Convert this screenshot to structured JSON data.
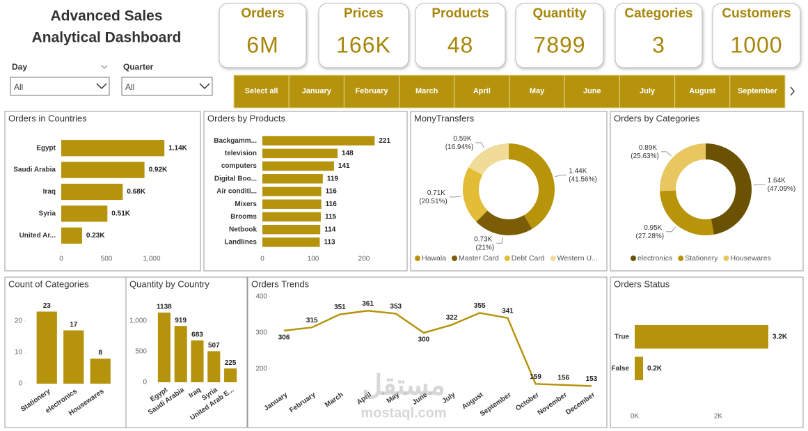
{
  "header": {
    "title": [
      "Advanced Sales",
      "Analytical Dashboard"
    ]
  },
  "kpis": [
    {
      "label": "Orders",
      "value": "6M"
    },
    {
      "label": "Prices",
      "value": "166K"
    },
    {
      "label": "Products",
      "value": "48"
    },
    {
      "label": "Quantity",
      "value": "7899"
    },
    {
      "label": "Categories",
      "value": "3"
    },
    {
      "label": "Customers",
      "value": "1000"
    }
  ],
  "slicers": [
    {
      "label": "Day",
      "value": "All"
    },
    {
      "label": "Quarter",
      "value": "All"
    }
  ],
  "month_buttons": [
    "Select all",
    "January",
    "February",
    "March",
    "April",
    "May",
    "June",
    "July",
    "August",
    "September"
  ],
  "watermark": [
    "مستقل",
    "mostaql.com"
  ],
  "chart_data": [
    {
      "type": "hbar",
      "title": "Orders in Countries",
      "categories": [
        "Egypt",
        "Saudi Arabia",
        "Iraq",
        "Syria",
        "United Ar..."
      ],
      "values": [
        1140,
        920,
        680,
        510,
        230
      ],
      "value_labels": [
        "1.14K",
        "0.92K",
        "0.68K",
        "0.51K",
        "0.23K"
      ],
      "color": "#b5930c",
      "xlim": [
        0,
        1300
      ],
      "xticks": [
        0,
        500,
        {
          "value": 1000,
          "label": "1,000"
        }
      ]
    },
    {
      "type": "hbar",
      "title": "Orders by Products",
      "categories": [
        "Backgamm...",
        "television",
        "computers",
        "Digital Boo...",
        "Air conditi...",
        "Mixers",
        "Brooms",
        "Netbook",
        "Landlines"
      ],
      "values": [
        221,
        148,
        141,
        119,
        116,
        116,
        115,
        114,
        113
      ],
      "color": "#b5930c",
      "xlim": [
        0,
        250
      ],
      "xticks": [
        0,
        100,
        200
      ]
    },
    {
      "type": "donut",
      "title": "MonyTransfers",
      "categories": [
        "Hawala",
        "Master Card",
        "Debt Card",
        "Western U..."
      ],
      "values": [
        1440,
        730,
        710,
        590
      ],
      "value_labels": [
        "1.44K (41.56%)",
        "0.73K (21%)",
        "0.71K (20.51%)",
        "0.59K (16.94%)"
      ],
      "colors": [
        "#b8940a",
        "#7a5d05",
        "#e3bd35",
        "#f0dc98"
      ]
    },
    {
      "type": "donut",
      "title": "Orders by Categories",
      "categories": [
        "electronics",
        "Stationery",
        "Housewares"
      ],
      "values": [
        1640,
        950,
        890
      ],
      "value_labels": [
        "1.64K (47.09%)",
        "0.95K (27.28%)",
        "0.89K (25.63%)"
      ],
      "colors": [
        "#6b5203",
        "#b8940a",
        "#e8c760"
      ]
    },
    {
      "type": "vbar",
      "title": "Count of Categories",
      "categories": [
        "Stationery",
        "electronics",
        "Housewares"
      ],
      "values": [
        23,
        17,
        8
      ],
      "color": "#b5930c",
      "ylim": [
        0,
        25
      ],
      "yticks": [
        0,
        10,
        20
      ]
    },
    {
      "type": "vbar",
      "title": "Quantity by Country",
      "categories": [
        "Egypt",
        "Saudi Arabia",
        "Iraq",
        "Syria",
        "United Arab E..."
      ],
      "values": [
        1138,
        919,
        683,
        507,
        225
      ],
      "color": "#b5930c",
      "ylim": [
        0,
        1250
      ],
      "yticks": [
        0,
        500,
        {
          "value": 1000,
          "label": "1,000"
        }
      ]
    },
    {
      "type": "line",
      "title": "Orders Trends",
      "categories": [
        "January",
        "February",
        "March",
        "April",
        "May",
        "June",
        "July",
        "August",
        "September",
        "October",
        "November",
        "December"
      ],
      "values": [
        306,
        315,
        351,
        361,
        353,
        300,
        322,
        355,
        341,
        159,
        156,
        153
      ],
      "color": "#b5930c",
      "ylim": [
        150,
        400
      ],
      "yticks": [
        200,
        300,
        400
      ]
    },
    {
      "type": "hbar",
      "title": "Orders Status",
      "categories": [
        "True",
        "False"
      ],
      "values": [
        3200,
        200
      ],
      "value_labels": [
        "3.2K",
        "0.2K"
      ],
      "color": "#b5930c",
      "xlim": [
        0,
        3500
      ],
      "xticks": [
        {
          "value": 0,
          "label": "0K"
        },
        {
          "value": 2000,
          "label": "2K"
        }
      ]
    }
  ]
}
